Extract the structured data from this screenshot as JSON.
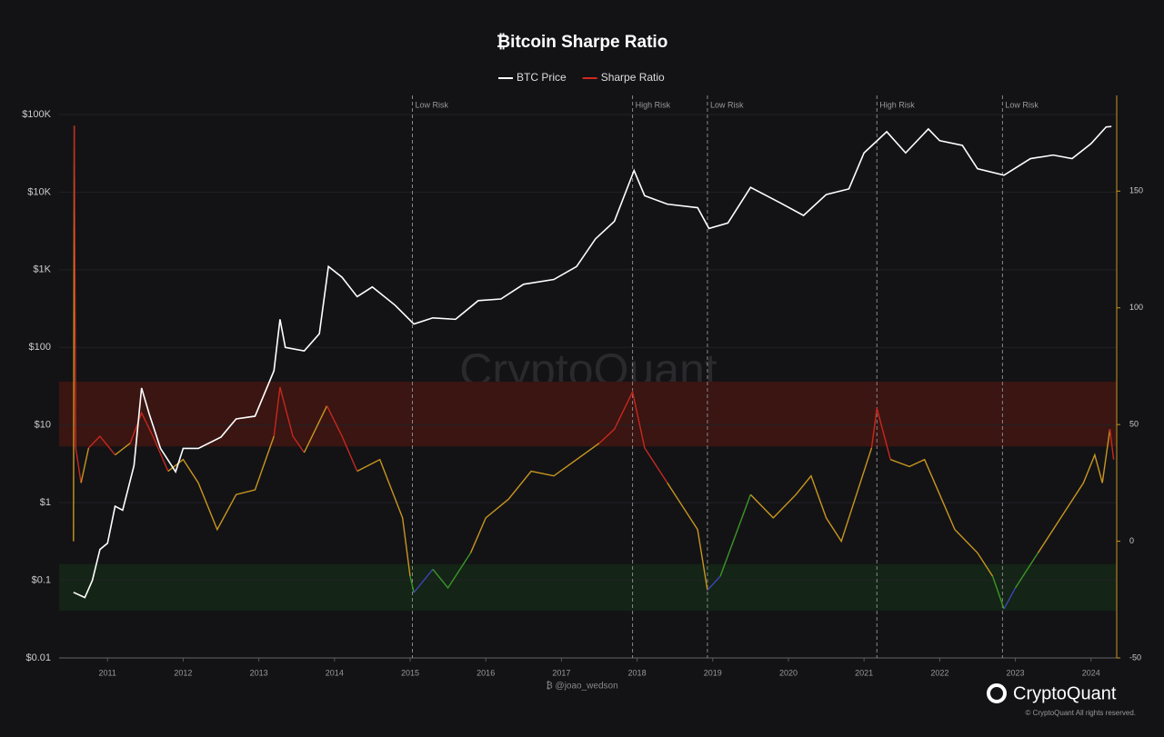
{
  "chart_data": {
    "type": "line",
    "title": "₿itcoin Sharpe Ratio",
    "log_scale": true,
    "grid": true,
    "xlim": [
      2010.36,
      2024.34
    ],
    "xticks": [
      2011,
      2012,
      2013,
      2014,
      2015,
      2016,
      2017,
      2018,
      2019,
      2020,
      2021,
      2022,
      2023,
      2024
    ],
    "ylim": [
      0.01,
      176000
    ],
    "yticks": [
      {
        "value": 0.01,
        "label": "$0.01"
      },
      {
        "value": 0.1,
        "label": "$0.1"
      },
      {
        "value": 1,
        "label": "$1"
      },
      {
        "value": 10,
        "label": "$10"
      },
      {
        "value": 100,
        "label": "$100"
      },
      {
        "value": 1000,
        "label": "$1K"
      },
      {
        "value": 10000,
        "label": "$10K"
      },
      {
        "value": 100000,
        "label": "$100K"
      }
    ],
    "y2lim": [
      -50,
      191
    ],
    "y2ticks": [
      -50,
      0,
      50,
      100,
      150
    ],
    "series": [
      {
        "name": "BTC Price",
        "color": "#ffffff",
        "x": [
          2010.55,
          2010.7,
          2010.8,
          2010.9,
          2011.0,
          2011.1,
          2011.2,
          2011.35,
          2011.45,
          2011.55,
          2011.7,
          2011.9,
          2012.0,
          2012.2,
          2012.5,
          2012.7,
          2012.95,
          2013.2,
          2013.28,
          2013.35,
          2013.6,
          2013.8,
          2013.92,
          2014.1,
          2014.3,
          2014.5,
          2014.8,
          2015.05,
          2015.3,
          2015.6,
          2015.9,
          2016.2,
          2016.5,
          2016.9,
          2017.2,
          2017.45,
          2017.7,
          2017.96,
          2018.1,
          2018.4,
          2018.8,
          2018.95,
          2019.2,
          2019.5,
          2019.9,
          2020.2,
          2020.5,
          2020.8,
          2021.0,
          2021.3,
          2021.55,
          2021.85,
          2022.0,
          2022.3,
          2022.5,
          2022.85,
          2023.2,
          2023.5,
          2023.75,
          2024.0,
          2024.2,
          2024.27
        ],
        "values": [
          0.07,
          0.06,
          0.1,
          0.25,
          0.3,
          0.9,
          0.8,
          3,
          30,
          14,
          5,
          2.5,
          5,
          5,
          7,
          12,
          13,
          50,
          230,
          100,
          90,
          150,
          1100,
          800,
          450,
          600,
          350,
          200,
          240,
          230,
          400,
          420,
          650,
          750,
          1100,
          2500,
          4200,
          19000,
          9000,
          7000,
          6300,
          3400,
          4000,
          11500,
          7200,
          5000,
          9300,
          11000,
          32000,
          60000,
          32000,
          65000,
          46000,
          40000,
          20000,
          16500,
          27000,
          30000,
          27000,
          42000,
          69000,
          70000
        ]
      },
      {
        "name": "Sharpe Ratio",
        "color": "#d0281e",
        "axis": "y2",
        "x": [
          2010.55,
          2010.56,
          2010.58,
          2010.65,
          2010.75,
          2010.9,
          2011.1,
          2011.3,
          2011.45,
          2011.6,
          2011.8,
          2012.0,
          2012.2,
          2012.45,
          2012.7,
          2012.95,
          2013.2,
          2013.28,
          2013.45,
          2013.6,
          2013.9,
          2014.1,
          2014.3,
          2014.6,
          2014.9,
          2015.0,
          2015.05,
          2015.3,
          2015.5,
          2015.8,
          2016.0,
          2016.3,
          2016.6,
          2016.9,
          2017.2,
          2017.5,
          2017.7,
          2017.94,
          2018.1,
          2018.4,
          2018.8,
          2018.93,
          2019.1,
          2019.5,
          2019.8,
          2020.1,
          2020.3,
          2020.5,
          2020.7,
          2020.9,
          2021.1,
          2021.17,
          2021.35,
          2021.6,
          2021.8,
          2022.0,
          2022.2,
          2022.5,
          2022.7,
          2022.85,
          2023.0,
          2023.3,
          2023.6,
          2023.9,
          2024.05,
          2024.15,
          2024.25,
          2024.3
        ],
        "values": [
          0,
          178,
          40,
          25,
          40,
          45,
          37,
          42,
          55,
          45,
          30,
          35,
          25,
          5,
          20,
          22,
          45,
          66,
          45,
          38,
          58,
          45,
          30,
          35,
          10,
          -15,
          -22,
          -12,
          -20,
          -5,
          10,
          18,
          30,
          28,
          35,
          42,
          48,
          64,
          40,
          25,
          5,
          -21,
          -15,
          20,
          10,
          20,
          28,
          10,
          0,
          20,
          40,
          57,
          35,
          32,
          35,
          20,
          5,
          -5,
          -15,
          -29,
          -20,
          -5,
          10,
          25,
          37,
          25,
          48,
          35
        ]
      }
    ],
    "color_zones": [
      {
        "min": 40,
        "color": "#c8281e"
      },
      {
        "min": -10,
        "color": "#c8961e"
      },
      {
        "min": -20,
        "color": "#3c9628"
      },
      {
        "min": -60,
        "color": "#3c46b4"
      }
    ],
    "bands": [
      {
        "from": 40.6,
        "to": 68.4,
        "color": "#3a1512"
      },
      {
        "from": -29.7,
        "to": -9.8,
        "color": "#142416"
      }
    ],
    "annotations": [
      {
        "x": 2015.03,
        "label": "Low Risk"
      },
      {
        "x": 2017.94,
        "label": "High Risk"
      },
      {
        "x": 2018.93,
        "label": "Low Risk"
      },
      {
        "x": 2021.17,
        "label": "High Risk"
      },
      {
        "x": 2022.83,
        "label": "Low Risk"
      }
    ],
    "author": "₿ @joao_wedson",
    "watermark": "CryptoQuant",
    "brand": "CryptoQuant",
    "copyright": "© CryptoQuant All rights reserved."
  }
}
